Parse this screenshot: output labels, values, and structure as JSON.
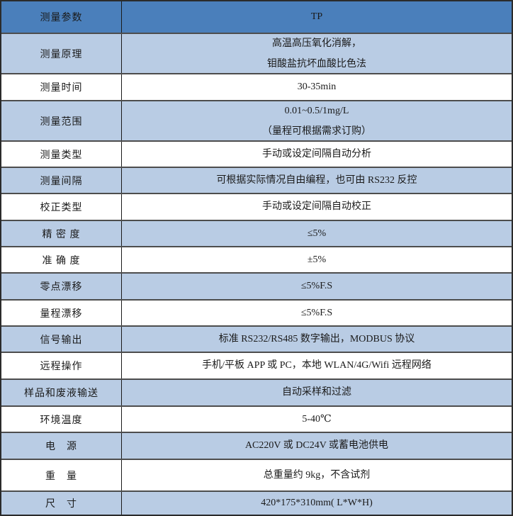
{
  "table": {
    "header": {
      "label": "测量参数",
      "value": "TP"
    },
    "rows": [
      {
        "label": "测量原理",
        "lines": [
          "高温高压氧化消解，",
          "钼酸盐抗坏血酸比色法"
        ]
      },
      {
        "label": "测量时间",
        "lines": [
          "30-35min"
        ]
      },
      {
        "label": "测量范围",
        "lines": [
          "0.01~0.5/1mg/L",
          "（量程可根据需求订购）"
        ]
      },
      {
        "label": "测量类型",
        "lines": [
          "手动或设定间隔自动分析"
        ]
      },
      {
        "label": "测量间隔",
        "lines": [
          "可根据实际情况自由编程，也可由 RS232 反控"
        ]
      },
      {
        "label": "校正类型",
        "lines": [
          "手动或设定间隔自动校正"
        ]
      },
      {
        "label": "精 密 度",
        "lines": [
          "≤5%"
        ]
      },
      {
        "label": "准 确 度",
        "lines": [
          "±5%"
        ]
      },
      {
        "label": "零点漂移",
        "lines": [
          "≤5%F.S"
        ]
      },
      {
        "label": "量程漂移",
        "lines": [
          "≤5%F.S"
        ]
      },
      {
        "label": "信号输出",
        "lines": [
          "标准 RS232/RS485 数字输出，MODBUS 协议"
        ]
      },
      {
        "label": "远程操作",
        "lines": [
          "手机/平板 APP 或 PC，本地 WLAN/4G/Wifi 远程网络"
        ]
      },
      {
        "label": "样品和废液输送",
        "lines": [
          "自动采样和过滤"
        ]
      },
      {
        "label": "环境温度",
        "lines": [
          "5-40℃"
        ]
      },
      {
        "label": "电　源",
        "lines": [
          "AC220V 或 DC24V 或蓄电池供电"
        ]
      },
      {
        "label": "重　量",
        "lines": [
          "总重量约 9kg，不含试剂"
        ]
      },
      {
        "label": "尺　寸",
        "lines": [
          "420*175*310mm( L*W*H)"
        ]
      }
    ]
  },
  "colors": {
    "header_bg": "#4a7fbb",
    "shaded_bg": "#b9cce4",
    "row_bg": "#ffffff",
    "border_outer": "#2b2b2b",
    "border_row": "#4d4d4d",
    "border_col": "#1a1a1a",
    "text": "#1a1a1a"
  }
}
